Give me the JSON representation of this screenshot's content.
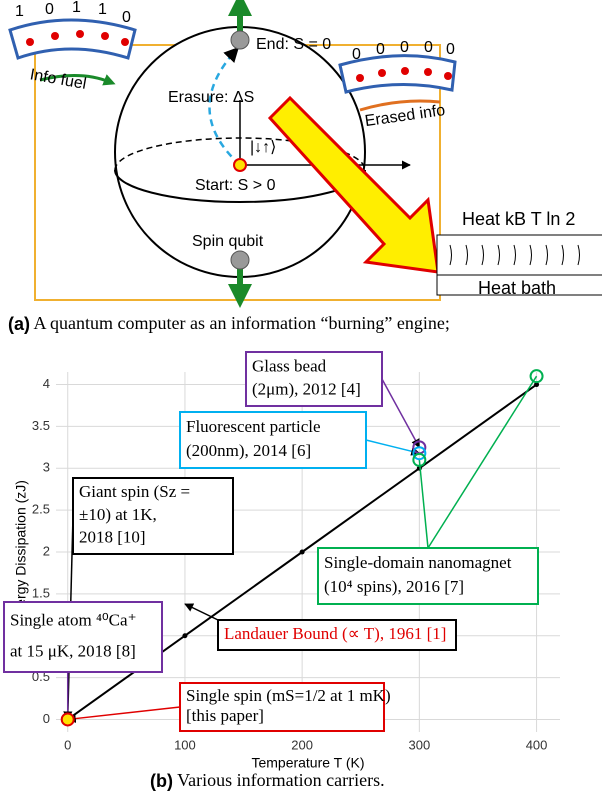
{
  "diagram": {
    "tape_in_bits": [
      "1",
      "0",
      "1",
      "1",
      "0"
    ],
    "tape_in_label": "Info fuel",
    "end_label": "End: S = 0",
    "erasure_label": "Erasure: ΔS",
    "tape_out_bits": [
      "0",
      "0",
      "0",
      "0",
      "0"
    ],
    "tape_out_label": "Erased info",
    "state_label": "|↓↑⟩",
    "start_label": "Start: S > 0",
    "qubit_label": "Spin qubit",
    "heat_label": "Heat kB T ln 2",
    "bath_label": "Heat bath"
  },
  "captions": [
    {
      "label": "(a)",
      "text": "A quantum computer as an information “burning” engine;"
    },
    {
      "label": "(b)",
      "text": "Various information carriers."
    }
  ],
  "chart_data": {
    "type": "line",
    "x_label": "Temperature T (K)",
    "y_label": "Energy Dissipation (zJ)",
    "x": [
      0,
      100,
      200,
      300,
      400
    ],
    "series": [
      {
        "color": "#000000",
        "values": [
          0,
          1,
          2,
          3,
          4
        ]
      }
    ],
    "points": [
      {
        "x": 400,
        "y": 4.1,
        "color": "#00b050"
      },
      {
        "x": 300,
        "y": 3.25,
        "color": "#7030a0"
      },
      {
        "x": 300,
        "y": 3.18,
        "color": "#00b0f0"
      },
      {
        "x": 300,
        "y": 3.1,
        "color": "#00b050"
      },
      {
        "x": 0,
        "y": 0,
        "color": "#e00000",
        "fill": "#ffe000"
      }
    ],
    "xlim": [
      -10,
      420
    ],
    "xticks": [
      0,
      100,
      200,
      300,
      400
    ],
    "ylim": [
      -0.15,
      4.15
    ],
    "yticks": [
      0,
      0.5,
      1,
      1.5,
      2,
      2.5,
      3,
      3.5,
      4
    ],
    "grid": true,
    "annotations": [
      {
        "lines": [
          "Glass bead",
          "(2μm), 2012 [4]"
        ],
        "color": "#7030a0",
        "text_color": "#000000"
      },
      {
        "lines": [
          "Fluorescent  particle",
          "(200nm), 2014 [6]"
        ],
        "color": "#00b0f0",
        "text_color": "#000000"
      },
      {
        "lines": [
          "Giant spin (Sz =",
          "±10) at 1K,",
          "2018 [10]"
        ],
        "color": "#000000",
        "text_color": "#000000"
      },
      {
        "lines": [
          "Single-domain nanomagnet",
          "(10⁴ spins), 2016 [7]"
        ],
        "color": "#00b050",
        "text_color": "#000000"
      },
      {
        "lines": [
          "Landauer Bound (∝ T), 1961 [1]"
        ],
        "color": "#000000",
        "text_color": "#e00000"
      },
      {
        "lines": [
          "Single atom ⁴⁰Ca⁺",
          "at 15 μK, 2018 [8]"
        ],
        "color": "#7030a0",
        "text_color": "#000000"
      },
      {
        "lines": [
          "Single spin (mS=1/2 at 1 mK)",
          "[this paper]"
        ],
        "color": "#e00000",
        "text_color": "#000000"
      }
    ]
  }
}
